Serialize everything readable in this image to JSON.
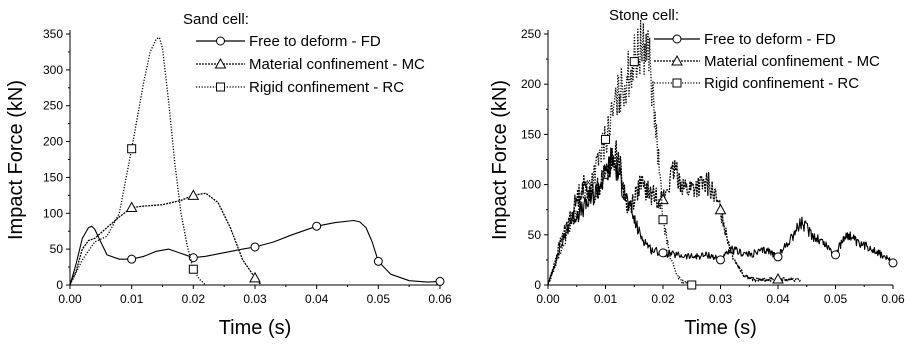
{
  "chart_data": [
    {
      "type": "line",
      "xlabel": "Time (s)",
      "ylabel": "Impact Force (kN)",
      "xlim": [
        0,
        0.06
      ],
      "ylim": [
        0,
        350
      ],
      "x_ticks": [
        "0.00",
        "0.01",
        "0.02",
        "0.03",
        "0.04",
        "0.05",
        "0.06"
      ],
      "y_ticks": [
        "0",
        "50",
        "100",
        "150",
        "200",
        "250",
        "300",
        "350"
      ],
      "legend_title": "Sand cell:",
      "legend_position": "top-right",
      "series": [
        {
          "name": "Free to deform - FD",
          "marker": "circle",
          "dash": "solid",
          "x": [
            0,
            0.001,
            0.002,
            0.003,
            0.0035,
            0.004,
            0.005,
            0.006,
            0.008,
            0.01,
            0.012,
            0.014,
            0.016,
            0.018,
            0.02,
            0.022,
            0.025,
            0.028,
            0.03,
            0.033,
            0.036,
            0.04,
            0.043,
            0.046,
            0.047,
            0.048,
            0.049,
            0.05,
            0.052,
            0.055,
            0.058,
            0.06
          ],
          "y": [
            0,
            30,
            65,
            80,
            82,
            78,
            60,
            42,
            36,
            36,
            40,
            47,
            50,
            44,
            38,
            40,
            45,
            50,
            53,
            60,
            70,
            82,
            87,
            90,
            88,
            80,
            60,
            33,
            15,
            6,
            4,
            5
          ],
          "marker_x": [
            0.01,
            0.02,
            0.03,
            0.04,
            0.05,
            0.06
          ]
        },
        {
          "name": "Material confinement - MC",
          "marker": "triangle",
          "dash": "dense-dot",
          "x": [
            0,
            0.001,
            0.002,
            0.003,
            0.004,
            0.006,
            0.008,
            0.01,
            0.012,
            0.015,
            0.018,
            0.02,
            0.022,
            0.024,
            0.026,
            0.028,
            0.03,
            0.031
          ],
          "y": [
            0,
            20,
            50,
            62,
            65,
            80,
            95,
            108,
            110,
            112,
            118,
            125,
            128,
            115,
            80,
            35,
            10,
            0
          ],
          "marker_x": [
            0.01,
            0.02,
            0.03
          ]
        },
        {
          "name": "Rigid confinement - RC",
          "marker": "square",
          "dash": "dot",
          "x": [
            0,
            0.002,
            0.004,
            0.006,
            0.008,
            0.01,
            0.012,
            0.013,
            0.014,
            0.0145,
            0.015,
            0.016,
            0.017,
            0.018,
            0.019,
            0.02,
            0.021,
            0.022
          ],
          "y": [
            0,
            35,
            60,
            68,
            100,
            190,
            285,
            325,
            343,
            345,
            330,
            255,
            170,
            100,
            55,
            22,
            8,
            0
          ],
          "marker_x": [
            0.01,
            0.02
          ]
        }
      ]
    },
    {
      "type": "line",
      "xlabel": "Time (s)",
      "ylabel": "Impact Force (kN)",
      "xlim": [
        0,
        0.06
      ],
      "ylim": [
        0,
        250
      ],
      "x_ticks": [
        "0.00",
        "0.01",
        "0.02",
        "0.03",
        "0.04",
        "0.05",
        "0.06"
      ],
      "y_ticks": [
        "0",
        "50",
        "100",
        "150",
        "200",
        "250"
      ],
      "legend_title": "Stone cell:",
      "legend_position": "top-right",
      "series": [
        {
          "name": "Free to deform - FD",
          "marker": "circle",
          "dash": "solid",
          "noisy": true,
          "x": [
            0,
            0.002,
            0.004,
            0.006,
            0.008,
            0.01,
            0.011,
            0.012,
            0.014,
            0.016,
            0.018,
            0.02,
            0.022,
            0.025,
            0.028,
            0.03,
            0.032,
            0.035,
            0.038,
            0.04,
            0.042,
            0.044,
            0.046,
            0.048,
            0.05,
            0.052,
            0.054,
            0.056,
            0.058,
            0.06
          ],
          "y": [
            0,
            35,
            65,
            75,
            90,
            110,
            125,
            115,
            80,
            50,
            35,
            32,
            30,
            28,
            30,
            25,
            35,
            30,
            35,
            28,
            45,
            62,
            50,
            42,
            30,
            52,
            40,
            38,
            30,
            22
          ],
          "marker_x": [
            0.01,
            0.02,
            0.03,
            0.04,
            0.05,
            0.06
          ]
        },
        {
          "name": "Material confinement - MC",
          "marker": "triangle",
          "dash": "dense-dot",
          "noisy": true,
          "x": [
            0,
            0.002,
            0.004,
            0.006,
            0.008,
            0.01,
            0.011,
            0.012,
            0.013,
            0.014,
            0.016,
            0.018,
            0.02,
            0.022,
            0.024,
            0.026,
            0.028,
            0.029,
            0.03,
            0.032,
            0.034,
            0.036,
            0.038,
            0.04,
            0.042,
            0.044
          ],
          "y": [
            0,
            40,
            70,
            100,
            90,
            110,
            120,
            135,
            100,
            75,
            100,
            90,
            85,
            115,
            95,
            98,
            100,
            88,
            75,
            30,
            10,
            5,
            5,
            6,
            5,
            5
          ],
          "marker_x": [
            0.02,
            0.03,
            0.04
          ]
        },
        {
          "name": "Rigid confinement - RC",
          "marker": "square",
          "dash": "dot",
          "noisy": true,
          "x": [
            0,
            0.002,
            0.004,
            0.006,
            0.008,
            0.01,
            0.012,
            0.014,
            0.016,
            0.0175,
            0.018,
            0.019,
            0.02,
            0.021,
            0.022,
            0.023,
            0.024,
            0.025
          ],
          "y": [
            0,
            30,
            60,
            90,
            110,
            145,
            185,
            210,
            235,
            240,
            200,
            140,
            65,
            35,
            15,
            5,
            2,
            0
          ],
          "marker_x": [
            0.01,
            0.015,
            0.02,
            0.025
          ]
        }
      ]
    }
  ]
}
